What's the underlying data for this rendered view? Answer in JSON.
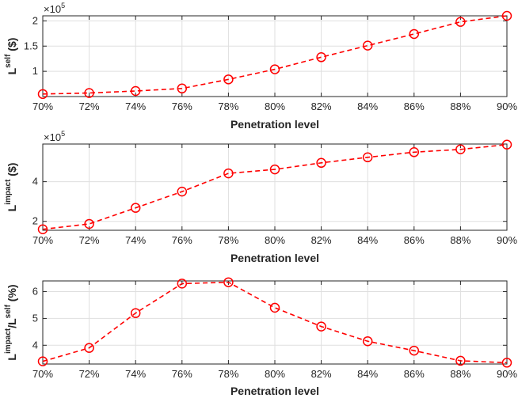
{
  "chart_data": [
    {
      "type": "line",
      "x_categories": [
        "70%",
        "72%",
        "74%",
        "76%",
        "78%",
        "80%",
        "82%",
        "84%",
        "86%",
        "88%",
        "90%"
      ],
      "series": [
        {
          "values": [
            55000,
            57000,
            61000,
            66000,
            84000,
            104000,
            128000,
            151000,
            174000,
            198000,
            210000
          ]
        }
      ],
      "xlabel": "Penetration level",
      "ylabel_base": "L",
      "ylabel_sup": "self",
      "ylabel_unit": " ($)",
      "exponent_label": "×10",
      "exponent_sup": "5",
      "ylim": [
        0.5,
        2.1
      ],
      "yticks": [
        1,
        1.5,
        2
      ],
      "ytick_labels": [
        "1",
        "1.5",
        "2"
      ],
      "y_scale_factor": 100000,
      "grid": true,
      "line_color": "#ff0000",
      "line_style": "dashed",
      "marker": "circle"
    },
    {
      "type": "line",
      "x_categories": [
        "70%",
        "72%",
        "74%",
        "76%",
        "78%",
        "80%",
        "82%",
        "84%",
        "86%",
        "88%",
        "90%"
      ],
      "series": [
        {
          "values": [
            160000,
            187000,
            268000,
            350000,
            442000,
            462000,
            495000,
            523000,
            549000,
            563000,
            587000
          ]
        }
      ],
      "xlabel": "Penetration level",
      "ylabel_base": "L",
      "ylabel_sup": "impact",
      "ylabel_unit": " ($)",
      "exponent_label": "×10",
      "exponent_sup": "5",
      "ylim": [
        1.55,
        5.9
      ],
      "yticks": [
        2,
        4
      ],
      "ytick_labels": [
        "2",
        "4"
      ],
      "y_scale_factor": 100000,
      "grid": true,
      "line_color": "#ff0000",
      "line_style": "dashed",
      "marker": "circle"
    },
    {
      "type": "line",
      "x_categories": [
        "70%",
        "72%",
        "74%",
        "76%",
        "78%",
        "80%",
        "82%",
        "84%",
        "86%",
        "88%",
        "90%"
      ],
      "series": [
        {
          "values": [
            3.4,
            3.9,
            5.2,
            6.3,
            6.35,
            5.4,
            4.7,
            4.15,
            3.8,
            3.42,
            3.35
          ]
        }
      ],
      "xlabel": "Penetration level",
      "ylabel_base": "L",
      "ylabel_sup": "impact",
      "ylabel_mid": "/L",
      "ylabel_sup2": "self",
      "ylabel_unit": " (%)",
      "ylim": [
        3.3,
        6.4
      ],
      "yticks": [
        4,
        5,
        6
      ],
      "ytick_labels": [
        "4",
        "5",
        "6"
      ],
      "y_scale_factor": 1,
      "grid": true,
      "line_color": "#ff0000",
      "line_style": "dashed",
      "marker": "circle"
    }
  ]
}
